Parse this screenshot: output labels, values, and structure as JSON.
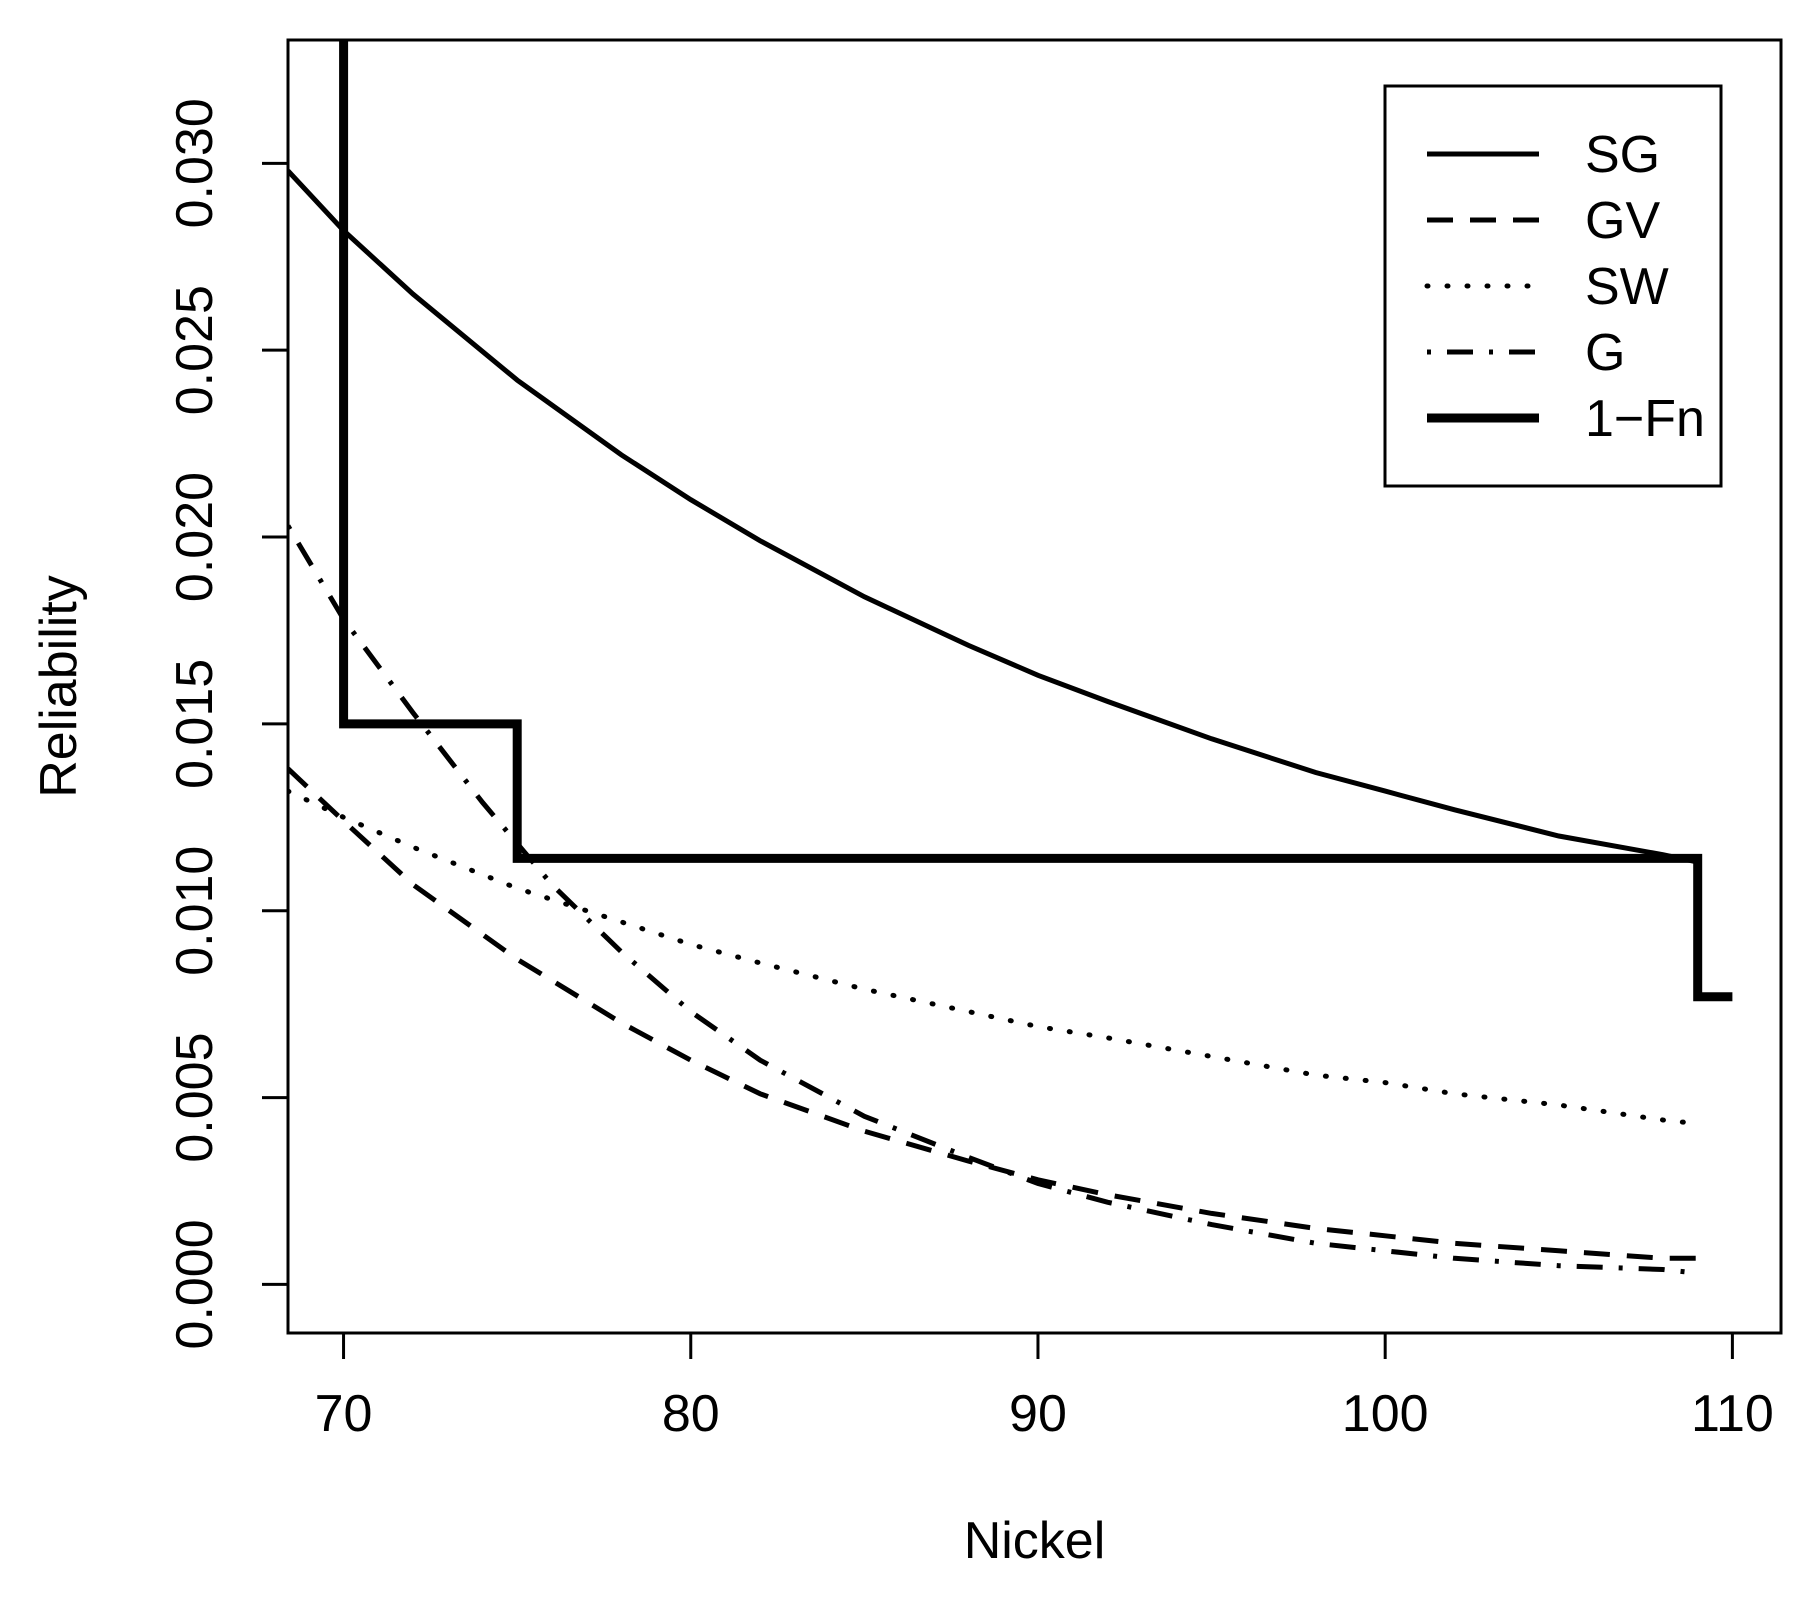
{
  "chart_data": {
    "type": "line",
    "title": "",
    "xlabel": "Nickel",
    "ylabel": "Reliability",
    "xlim": [
      68.4,
      111.4
    ],
    "ylim": [
      -0.0013,
      0.0333
    ],
    "xticks": [
      70,
      80,
      90,
      100,
      110
    ],
    "xtick_labels": [
      "70",
      "80",
      "90",
      "100",
      "110"
    ],
    "yticks": [
      0,
      0.005,
      0.01,
      0.015,
      0.02,
      0.025,
      0.03
    ],
    "ytick_labels": [
      "0.000",
      "0.005",
      "0.010",
      "0.015",
      "0.020",
      "0.025",
      "0.030"
    ],
    "grid": false,
    "legend_position": "top-right",
    "series": [
      {
        "name": "SG",
        "style": "solid",
        "x": [
          68.4,
          70,
          72,
          75,
          78,
          80,
          82,
          85,
          88,
          90,
          92,
          95,
          98,
          100,
          102,
          105,
          108,
          109
        ],
        "y": [
          0.0298,
          0.0282,
          0.0265,
          0.0242,
          0.0222,
          0.021,
          0.0199,
          0.0184,
          0.0171,
          0.0163,
          0.0156,
          0.0146,
          0.0137,
          0.0132,
          0.0127,
          0.012,
          0.0115,
          0.0113
        ]
      },
      {
        "name": "GV",
        "style": "dashed",
        "x": [
          68.4,
          70,
          72,
          75,
          78,
          80,
          82,
          85,
          88,
          90,
          92,
          95,
          98,
          100,
          102,
          105,
          108,
          109
        ],
        "y": [
          0.0138,
          0.0124,
          0.0107,
          0.0087,
          0.007,
          0.006,
          0.0051,
          0.0041,
          0.0033,
          0.0028,
          0.0024,
          0.0019,
          0.0015,
          0.0013,
          0.0011,
          0.0009,
          0.0007,
          0.0007
        ]
      },
      {
        "name": "SW",
        "style": "dotted",
        "x": [
          68.4,
          70,
          72,
          75,
          78,
          80,
          82,
          85,
          88,
          90,
          92,
          95,
          98,
          100,
          102,
          105,
          108,
          109
        ],
        "y": [
          0.0132,
          0.0125,
          0.0117,
          0.0106,
          0.0097,
          0.0091,
          0.0086,
          0.0079,
          0.0073,
          0.0069,
          0.0066,
          0.0061,
          0.0056,
          0.0054,
          0.0051,
          0.0048,
          0.0044,
          0.0043
        ]
      },
      {
        "name": "G",
        "style": "dotdash",
        "x": [
          68.4,
          70,
          72,
          74,
          76,
          78,
          80,
          82,
          85,
          88,
          90,
          92,
          95,
          98,
          100,
          102,
          105,
          108,
          109
        ],
        "y": [
          0.0203,
          0.0178,
          0.0153,
          0.0129,
          0.0107,
          0.0089,
          0.0073,
          0.006,
          0.0045,
          0.0034,
          0.0027,
          0.0022,
          0.0016,
          0.0011,
          0.0009,
          0.0007,
          0.0005,
          0.0004,
          0.0003
        ]
      },
      {
        "name": "1−Fn",
        "style": "step",
        "x": [
          70,
          70,
          75,
          75,
          109,
          109,
          110
        ],
        "y": [
          0.0333,
          0.015,
          0.015,
          0.0114,
          0.0114,
          0.0077,
          0.0077
        ]
      }
    ]
  }
}
